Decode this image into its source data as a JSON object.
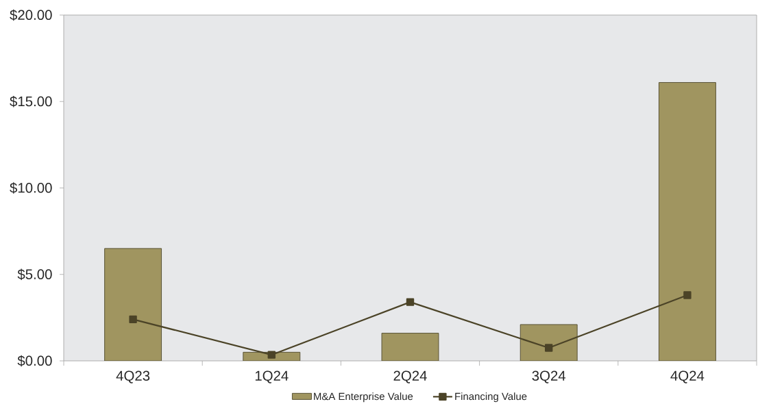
{
  "chart_data": {
    "type": "bar",
    "categories": [
      "4Q23",
      "1Q24",
      "2Q24",
      "3Q24",
      "4Q24"
    ],
    "series": [
      {
        "name": "M&A Enterprise Value",
        "color": "#a09560",
        "values": [
          6.5,
          0.5,
          1.6,
          2.1,
          16.1
        ]
      },
      {
        "name": "Financing Value",
        "type": "line",
        "color": "#4b4327",
        "marker": "square",
        "line_style": "solid",
        "values": [
          2.4,
          0.35,
          3.4,
          0.75,
          3.8
        ]
      }
    ],
    "ylim": [
      0,
      20
    ],
    "yticks": [
      {
        "value": 0,
        "label": "$0.00"
      },
      {
        "value": 5,
        "label": "$5.00"
      },
      {
        "value": 10,
        "label": "$10.00"
      },
      {
        "value": 15,
        "label": "$15.00"
      },
      {
        "value": 20,
        "label": "$20.00"
      }
    ],
    "legend": "bottom"
  }
}
